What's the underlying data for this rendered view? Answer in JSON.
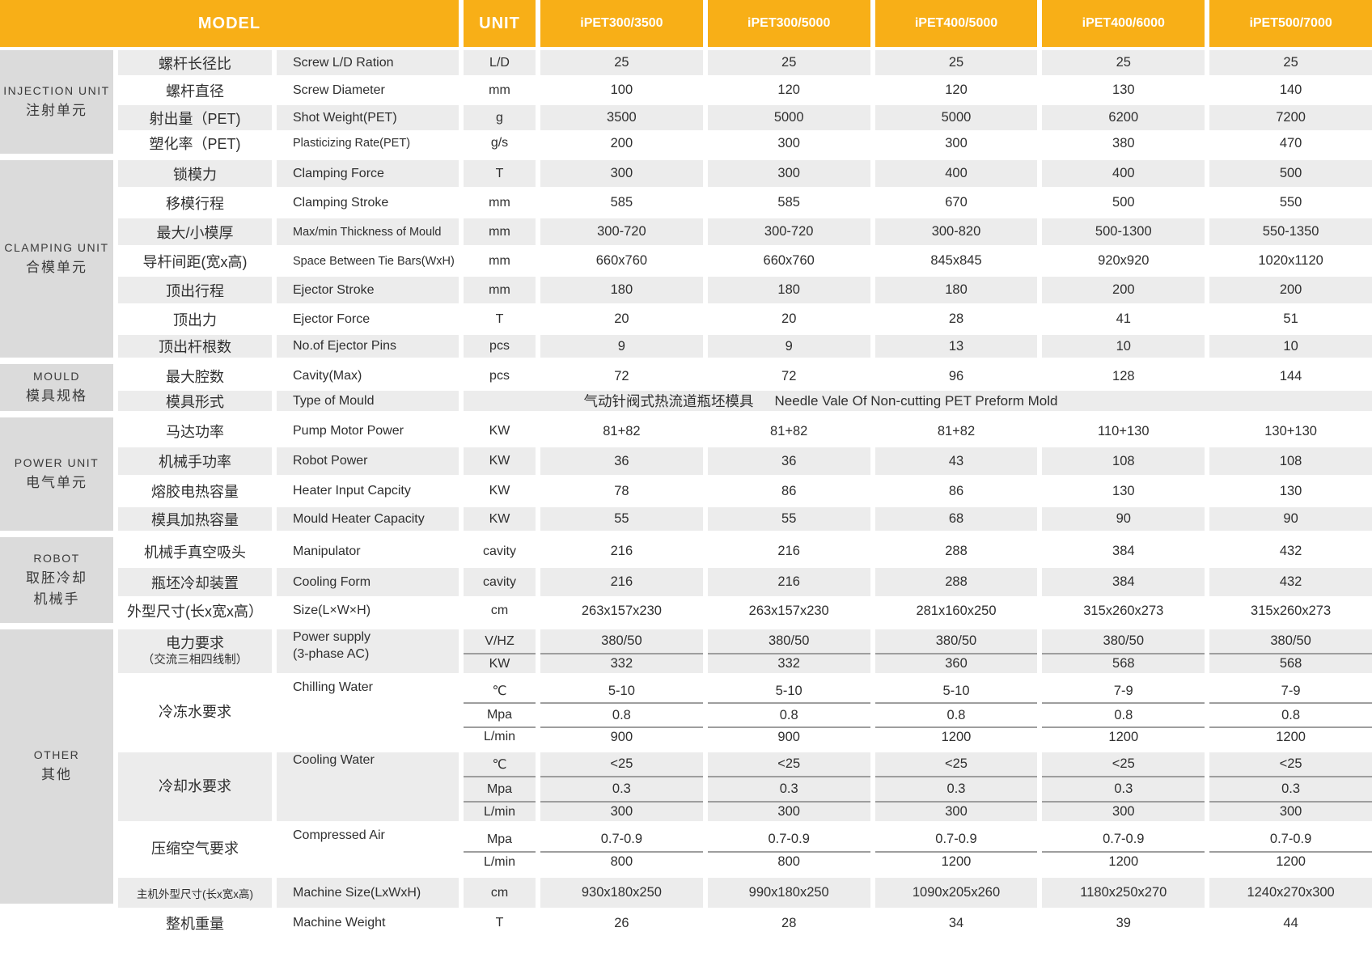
{
  "header": {
    "model_label": "MODEL",
    "unit_label": "UNIT",
    "models": [
      "iPET300/3500",
      "iPET300/5000",
      "iPET400/5000",
      "iPET400/6000",
      "iPET500/7000"
    ]
  },
  "colors": {
    "header_orange": "#F8AF17",
    "row_gray": "#ECECEC",
    "section_gray": "#DBDBDB",
    "divider_gray": "#9E9E9E",
    "header_text": "#FFFFFF"
  },
  "sections": [
    {
      "label_lines": [
        "INJECTION UNIT",
        "注射单元"
      ],
      "rows": [
        {
          "cn": "螺杆长径比",
          "en": "Screw L/D Ration",
          "unit": "L/D",
          "values": [
            "25",
            "25",
            "25",
            "25",
            "25"
          ]
        },
        {
          "cn": "螺杆直径",
          "en": "Screw Diameter",
          "unit": "mm",
          "values": [
            "100",
            "120",
            "120",
            "130",
            "140"
          ]
        },
        {
          "cn": "射出量（PET)",
          "en": "Shot Weight(PET)",
          "unit": "g",
          "values": [
            "3500",
            "5000",
            "5000",
            "6200",
            "7200"
          ]
        },
        {
          "cn": "塑化率（PET)",
          "en": "Plasticizing Rate(PET)",
          "unit": "g/s",
          "values": [
            "200",
            "300",
            "300",
            "380",
            "470"
          ]
        }
      ]
    },
    {
      "label_lines": [
        "CLAMPING UNIT",
        "合模单元"
      ],
      "rows": [
        {
          "cn": "锁模力",
          "en": "Clamping Force",
          "unit": "T",
          "values": [
            "300",
            "300",
            "400",
            "400",
            "500"
          ]
        },
        {
          "cn": "移模行程",
          "en": "Clamping Stroke",
          "unit": "mm",
          "values": [
            "585",
            "585",
            "670",
            "500",
            "550"
          ]
        },
        {
          "cn": "最大/小模厚",
          "en": "Max/min Thickness of Mould",
          "unit": "mm",
          "values": [
            "300-720",
            "300-720",
            "300-820",
            "500-1300",
            "550-1350"
          ]
        },
        {
          "cn": "导杆间距(宽x高)",
          "en": "Space Between Tie Bars(WxH)",
          "unit": "mm",
          "values": [
            "660x760",
            "660x760",
            "845x845",
            "920x920",
            "1020x1120"
          ]
        },
        {
          "cn": "顶出行程",
          "en": "Ejector Stroke",
          "unit": "mm",
          "values": [
            "180",
            "180",
            "180",
            "200",
            "200"
          ]
        },
        {
          "cn": "顶出力",
          "en": "Ejector Force",
          "unit": "T",
          "values": [
            "20",
            "20",
            "28",
            "41",
            "51"
          ]
        },
        {
          "cn": "顶出杆根数",
          "en": "No.of Ejector Pins",
          "unit": "pcs",
          "values": [
            "9",
            "9",
            "13",
            "10",
            "10"
          ]
        }
      ]
    },
    {
      "label_lines": [
        "MOULD",
        "模具规格"
      ],
      "rows": [
        {
          "cn": "最大腔数",
          "en": "Cavity(Max)",
          "unit": "pcs",
          "values": [
            "72",
            "72",
            "96",
            "128",
            "144"
          ]
        },
        {
          "cn": "模具形式",
          "en": "Type of Mould",
          "merged_cn": "气动针阀式热流道瓶坯模具",
          "merged_en": "Needle Vale Of Non-cutting PET Preform Mold"
        }
      ]
    },
    {
      "label_lines": [
        "POWER UNIT",
        "电气单元"
      ],
      "rows": [
        {
          "cn": "马达功率",
          "en": "Pump Motor Power",
          "unit": "KW",
          "values": [
            "81+82",
            "81+82",
            "81+82",
            "110+130",
            "130+130"
          ]
        },
        {
          "cn": "机械手功率",
          "en": "Robot Power",
          "unit": "KW",
          "values": [
            "36",
            "36",
            "43",
            "108",
            "108"
          ]
        },
        {
          "cn": "熔胶电热容量",
          "en": "Heater Input Capcity",
          "unit": "KW",
          "values": [
            "78",
            "86",
            "86",
            "130",
            "130"
          ]
        },
        {
          "cn": "模具加热容量",
          "en": "Mould Heater Capacity",
          "unit": "KW",
          "values": [
            "55",
            "55",
            "68",
            "90",
            "90"
          ]
        }
      ]
    },
    {
      "label_lines": [
        "ROBOT",
        "取胚冷却",
        "机械手"
      ],
      "rows": [
        {
          "cn": "机械手真空吸头",
          "en": "Manipulator",
          "unit": "cavity",
          "values": [
            "216",
            "216",
            "288",
            "384",
            "432"
          ]
        },
        {
          "cn": "瓶坯冷却装置",
          "en": "Cooling Form",
          "unit": "cavity",
          "values": [
            "216",
            "216",
            "288",
            "384",
            "432"
          ]
        },
        {
          "cn": "外型尺寸(长x宽x高）",
          "en": "Size(L×W×H)",
          "unit": "cm",
          "values": [
            "263x157x230",
            "263x157x230",
            "281x160x250",
            "315x260x273",
            "315x260x273"
          ]
        }
      ]
    },
    {
      "label_lines": [
        "OTHER",
        "其他"
      ],
      "rows": [
        {
          "cn_lines": [
            "电力要求",
            "（交流三相四线制）"
          ],
          "en_lines": [
            "Power supply",
            "(3-phase AC)"
          ],
          "subrows": [
            {
              "unit": "V/HZ",
              "values": [
                "380/50",
                "380/50",
                "380/50",
                "380/50",
                "380/50"
              ]
            },
            {
              "unit": "KW",
              "values": [
                "332",
                "332",
                "360",
                "568",
                "568"
              ]
            }
          ]
        },
        {
          "cn_lines": [
            "冷冻水要求"
          ],
          "en_lines": [
            "Chilling Water"
          ],
          "subrows": [
            {
              "unit": "℃",
              "values": [
                "5-10",
                "5-10",
                "5-10",
                "7-9",
                "7-9"
              ]
            },
            {
              "unit": "Mpa",
              "values": [
                "0.8",
                "0.8",
                "0.8",
                "0.8",
                "0.8"
              ]
            },
            {
              "unit": "L/min",
              "values": [
                "900",
                "900",
                "1200",
                "1200",
                "1200"
              ]
            }
          ]
        },
        {
          "cn_lines": [
            "冷却水要求"
          ],
          "en_lines": [
            "Cooling Water"
          ],
          "subrows": [
            {
              "unit": "℃",
              "values": [
                "<25",
                "<25",
                "<25",
                "<25",
                "<25"
              ]
            },
            {
              "unit": "Mpa",
              "values": [
                "0.3",
                "0.3",
                "0.3",
                "0.3",
                "0.3"
              ]
            },
            {
              "unit": "L/min",
              "values": [
                "300",
                "300",
                "300",
                "300",
                "300"
              ]
            }
          ]
        },
        {
          "cn_lines": [
            "压缩空气要求"
          ],
          "en_lines": [
            "Compressed Air"
          ],
          "subrows": [
            {
              "unit": "Mpa",
              "values": [
                "0.7-0.9",
                "0.7-0.9",
                "0.7-0.9",
                "0.7-0.9",
                "0.7-0.9"
              ]
            },
            {
              "unit": "L/min",
              "values": [
                "800",
                "800",
                "1200",
                "1200",
                "1200"
              ]
            }
          ]
        },
        {
          "cn": "主机外型尺寸(长x宽x高)",
          "cn_small": true,
          "en": "Machine Size(LxWxH)",
          "unit": "cm",
          "values": [
            "930x180x250",
            "990x180x250",
            "1090x205x260",
            "1180x250x270",
            "1240x270x300"
          ]
        }
      ]
    },
    {
      "label_lines": [],
      "rows": [
        {
          "cn": "整机重量",
          "en": "Machine Weight",
          "unit": "T",
          "values": [
            "26",
            "28",
            "34",
            "39",
            "44"
          ]
        }
      ]
    }
  ]
}
